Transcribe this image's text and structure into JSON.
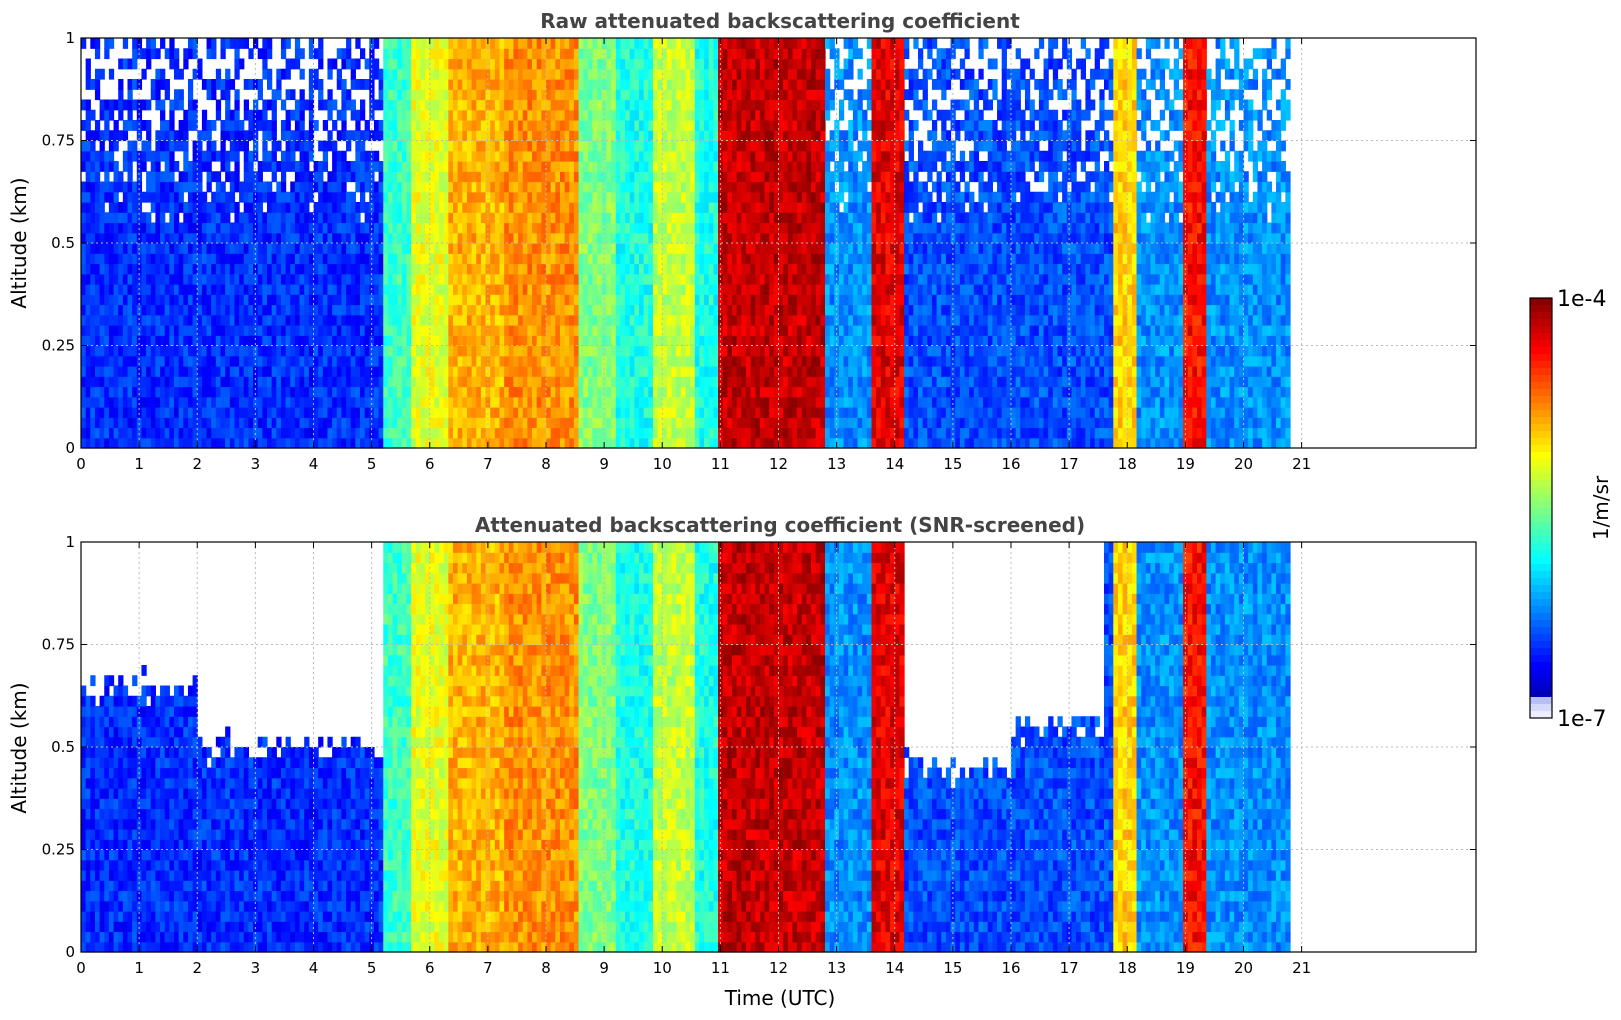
{
  "chart_data": [
    {
      "type": "heatmap",
      "title": "Raw attenuated backscattering coefficient",
      "xlabel": "",
      "ylabel": "Altitude (km)",
      "xlim": [
        0,
        24
      ],
      "ylim": [
        0,
        1
      ],
      "x_ticks": [
        "0",
        "1",
        "2",
        "3",
        "4",
        "5",
        "6",
        "7",
        "8",
        "9",
        "10",
        "11",
        "12",
        "13",
        "14",
        "15",
        "16",
        "17",
        "18",
        "19",
        "20",
        "21"
      ],
      "y_ticks": [
        "0",
        "0.25",
        "0.5",
        "0.75",
        "1"
      ],
      "grid": true,
      "data_end_time": 20.8,
      "screened": false,
      "log10_backscatter_by_time": [
        {
          "t0": 0.0,
          "t1": 5.2,
          "level": -6.5
        },
        {
          "t0": 5.2,
          "t1": 5.7,
          "level": -5.7
        },
        {
          "t0": 5.7,
          "t1": 6.3,
          "level": -5.2
        },
        {
          "t0": 6.3,
          "t1": 7.3,
          "level": -4.9
        },
        {
          "t0": 7.3,
          "t1": 8.6,
          "level": -4.8
        },
        {
          "t0": 8.6,
          "t1": 9.2,
          "level": -5.5
        },
        {
          "t0": 9.2,
          "t1": 9.8,
          "level": -5.8
        },
        {
          "t0": 9.8,
          "t1": 10.6,
          "level": -5.3
        },
        {
          "t0": 10.6,
          "t1": 11.0,
          "level": -5.8
        },
        {
          "t0": 11.0,
          "t1": 12.8,
          "level": -4.2
        },
        {
          "t0": 12.8,
          "t1": 13.6,
          "level": -6.2
        },
        {
          "t0": 13.6,
          "t1": 14.2,
          "level": -4.3
        },
        {
          "t0": 14.2,
          "t1": 17.8,
          "level": -6.4
        },
        {
          "t0": 17.8,
          "t1": 18.2,
          "level": -5.0
        },
        {
          "t0": 18.2,
          "t1": 19.0,
          "level": -6.2
        },
        {
          "t0": 19.0,
          "t1": 19.4,
          "level": -4.4
        },
        {
          "t0": 19.4,
          "t1": 20.8,
          "level": -6.2
        }
      ]
    },
    {
      "type": "heatmap",
      "title": "Attenuated backscattering coefficient (SNR-screened)",
      "xlabel": "Time (UTC)",
      "ylabel": "Altitude (km)",
      "xlim": [
        0,
        24
      ],
      "ylim": [
        0,
        1
      ],
      "x_ticks": [
        "0",
        "1",
        "2",
        "3",
        "4",
        "5",
        "6",
        "7",
        "8",
        "9",
        "10",
        "11",
        "12",
        "13",
        "14",
        "15",
        "16",
        "17",
        "18",
        "19",
        "20",
        "21"
      ],
      "y_ticks": [
        "0",
        "0.25",
        "0.5",
        "0.75",
        "1"
      ],
      "grid": true,
      "data_end_time": 20.8,
      "screened": true,
      "log10_backscatter_by_time": [
        {
          "t0": 0.0,
          "t1": 5.2,
          "level": -6.5
        },
        {
          "t0": 5.2,
          "t1": 5.7,
          "level": -5.7
        },
        {
          "t0": 5.7,
          "t1": 6.3,
          "level": -5.2
        },
        {
          "t0": 6.3,
          "t1": 7.3,
          "level": -4.9
        },
        {
          "t0": 7.3,
          "t1": 8.6,
          "level": -4.8
        },
        {
          "t0": 8.6,
          "t1": 9.2,
          "level": -5.5
        },
        {
          "t0": 9.2,
          "t1": 9.8,
          "level": -5.8
        },
        {
          "t0": 9.8,
          "t1": 10.6,
          "level": -5.3
        },
        {
          "t0": 10.6,
          "t1": 11.0,
          "level": -5.8
        },
        {
          "t0": 11.0,
          "t1": 12.8,
          "level": -4.2
        },
        {
          "t0": 12.8,
          "t1": 13.6,
          "level": -6.2
        },
        {
          "t0": 13.6,
          "t1": 14.2,
          "level": -4.3
        },
        {
          "t0": 14.2,
          "t1": 17.8,
          "level": -6.4
        },
        {
          "t0": 17.8,
          "t1": 18.2,
          "level": -5.0
        },
        {
          "t0": 18.2,
          "t1": 19.0,
          "level": -6.2
        },
        {
          "t0": 19.0,
          "t1": 19.4,
          "level": -4.4
        },
        {
          "t0": 19.4,
          "t1": 20.8,
          "level": -6.2
        }
      ],
      "screened_cloud_top_km": [
        {
          "t0": 0.0,
          "t1": 2.0,
          "top": 0.65
        },
        {
          "t0": 2.0,
          "t1": 5.2,
          "top": 0.5
        },
        {
          "t0": 14.2,
          "t1": 16.0,
          "top": 0.45
        },
        {
          "t0": 16.0,
          "t1": 17.6,
          "top": 0.55
        }
      ]
    }
  ],
  "colorbar": {
    "label": "1/m/sr",
    "max_label": "1e-4",
    "min_label": "1e-7",
    "range": [
      1e-07,
      0.0001
    ],
    "scale": "log",
    "colormap": "jet"
  }
}
